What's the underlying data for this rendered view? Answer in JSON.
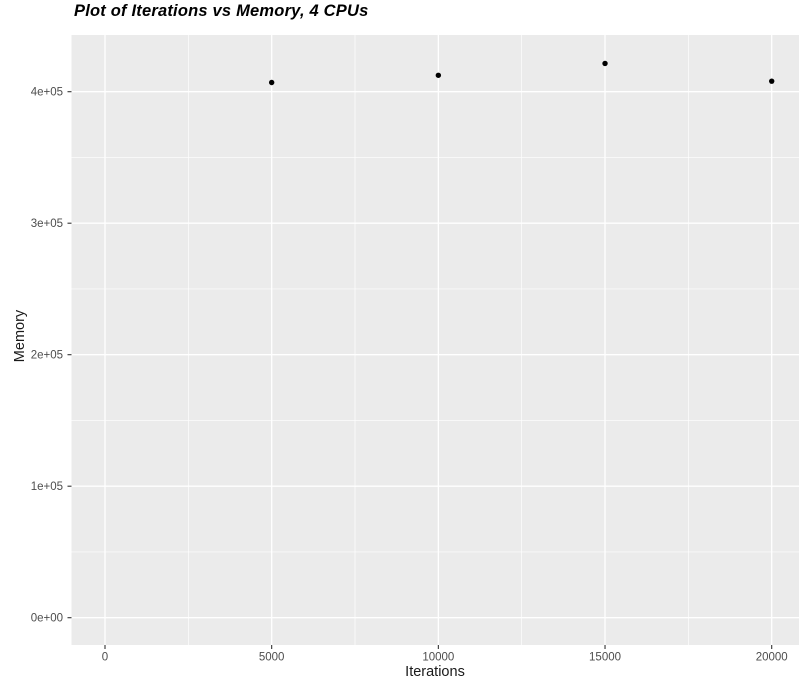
{
  "chart_data": {
    "type": "scatter",
    "title": "Plot of Iterations vs Memory, 4 CPUs",
    "xlabel": "Iterations",
    "ylabel": "Memory",
    "points": [
      {
        "x": 5000,
        "y": 407000
      },
      {
        "x": 10000,
        "y": 412500
      },
      {
        "x": 15000,
        "y": 421500
      },
      {
        "x": 20000,
        "y": 408000
      }
    ],
    "x_ticks": {
      "values": [
        0,
        5000,
        10000,
        15000,
        20000
      ],
      "labels": [
        "0",
        "5000",
        "10000",
        "15000",
        "20000"
      ]
    },
    "y_ticks": {
      "values": [
        0,
        100000,
        200000,
        300000,
        400000
      ],
      "labels": [
        "0e+00",
        "1e+05",
        "2e+05",
        "3e+05",
        "4e+05"
      ]
    },
    "x_minor": [
      2500,
      7500,
      12500,
      17500
    ],
    "y_minor": [
      50000,
      150000,
      250000,
      350000
    ],
    "xlim": [
      -1000,
      21000
    ],
    "ylim": [
      -21000,
      443000
    ],
    "grid": true,
    "legend": "none",
    "colors": {
      "panel_bg": "#EBEBEB",
      "grid": "#FFFFFF",
      "point": "#000000",
      "tick_mark": "#333333",
      "tick_label": "#4D4D4D"
    }
  }
}
